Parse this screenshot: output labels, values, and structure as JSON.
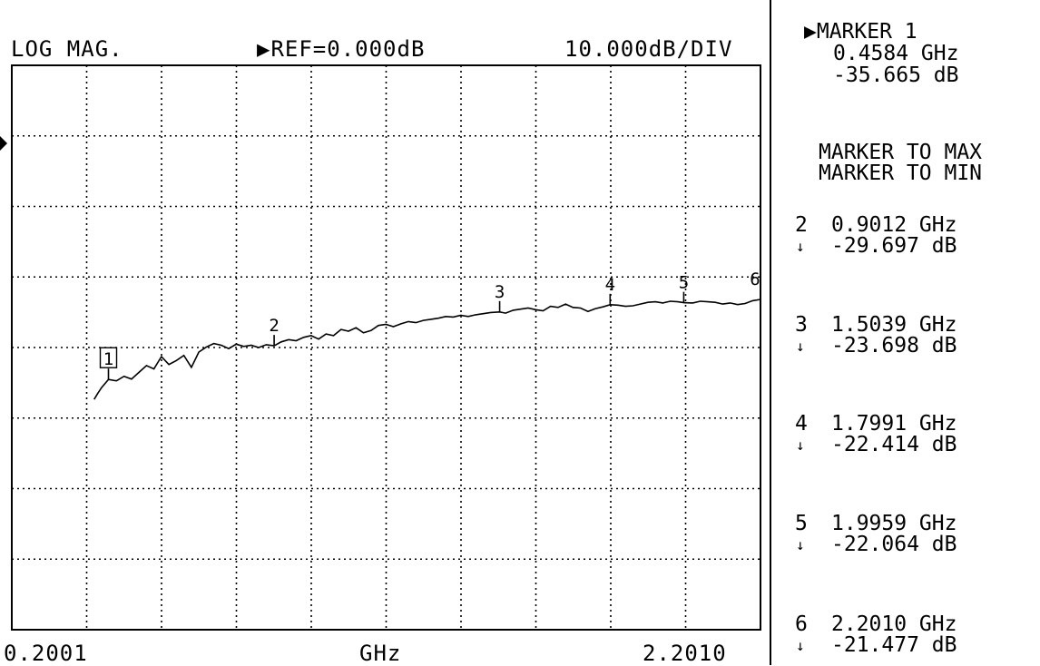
{
  "header": {
    "format": "LOG MAG.",
    "reference": "▶REF=0.000dB",
    "scale": "10.000dB/DIV"
  },
  "footer": {
    "start": "0.2001",
    "unit": "GHz",
    "stop": "2.2010"
  },
  "active_marker": {
    "title": "▶MARKER 1",
    "freq": "0.4584 GHz",
    "amp": "-35.665 dB"
  },
  "menu": {
    "to_max": "MARKER TO MAX",
    "to_min": "MARKER TO MIN"
  },
  "markers": [
    {
      "num": "2",
      "arrow": "↓",
      "freq": "0.9012 GHz",
      "amp": "-29.697 dB"
    },
    {
      "num": "3",
      "arrow": "↓",
      "freq": "1.5039 GHz",
      "amp": "-23.698 dB"
    },
    {
      "num": "4",
      "arrow": "↓",
      "freq": "1.7991 GHz",
      "amp": "-22.414 dB"
    },
    {
      "num": "5",
      "arrow": "↓",
      "freq": "1.9959 GHz",
      "amp": "-22.064 dB"
    },
    {
      "num": "6",
      "arrow": "↓",
      "freq": "2.2010 GHz",
      "amp": "-21.477 dB"
    }
  ],
  "chart_data": {
    "type": "line",
    "xlabel": "GHz",
    "ylabel": "",
    "xlim": [
      0.2001,
      2.201
    ],
    "ylim": [
      -80,
      20
    ],
    "reference_db": 0,
    "grid": true,
    "series": [
      {
        "x": [
          0.42,
          0.43,
          0.44,
          0.4584,
          0.48,
          0.5,
          0.52,
          0.54,
          0.56,
          0.58,
          0.6,
          0.62,
          0.64,
          0.66,
          0.68,
          0.7,
          0.72,
          0.74,
          0.76,
          0.78,
          0.8,
          0.82,
          0.84,
          0.86,
          0.88,
          0.9012,
          0.92,
          0.94,
          0.96,
          0.98,
          1.0,
          1.02,
          1.04,
          1.06,
          1.08,
          1.1,
          1.12,
          1.14,
          1.16,
          1.18,
          1.2,
          1.22,
          1.24,
          1.26,
          1.28,
          1.3,
          1.32,
          1.34,
          1.36,
          1.38,
          1.4,
          1.42,
          1.44,
          1.46,
          1.48,
          1.5039,
          1.52,
          1.54,
          1.56,
          1.58,
          1.6,
          1.62,
          1.64,
          1.66,
          1.68,
          1.7,
          1.72,
          1.74,
          1.76,
          1.78,
          1.7991,
          1.82,
          1.84,
          1.86,
          1.88,
          1.9,
          1.92,
          1.94,
          1.96,
          1.98,
          1.9959,
          2.02,
          2.04,
          2.06,
          2.08,
          2.1,
          2.12,
          2.14,
          2.16,
          2.18,
          2.201
        ],
        "y": [
          -39.2,
          -38.1,
          -37.1,
          -35.665,
          -35.9,
          -35.1,
          -35.6,
          -34.4,
          -33.2,
          -33.8,
          -31.6,
          -33.0,
          -32.3,
          -31.4,
          -33.5,
          -30.8,
          -29.9,
          -29.3,
          -29.6,
          -30.2,
          -29.4,
          -29.8,
          -29.6,
          -30.0,
          -29.5,
          -29.697,
          -29.0,
          -28.6,
          -28.8,
          -28.2,
          -27.9,
          -28.5,
          -27.6,
          -27.9,
          -26.8,
          -27.1,
          -26.5,
          -27.4,
          -27.0,
          -26.1,
          -25.9,
          -26.3,
          -25.8,
          -25.4,
          -25.6,
          -25.2,
          -25.0,
          -24.8,
          -24.5,
          -24.6,
          -24.3,
          -24.5,
          -24.2,
          -24.0,
          -23.8,
          -23.698,
          -23.9,
          -23.4,
          -23.2,
          -23.0,
          -23.3,
          -23.5,
          -22.7,
          -22.9,
          -22.3,
          -22.9,
          -23.0,
          -23.6,
          -23.1,
          -22.8,
          -22.414,
          -22.5,
          -22.7,
          -22.6,
          -22.3,
          -22.0,
          -21.9,
          -22.1,
          -21.8,
          -21.9,
          -22.064,
          -22.1,
          -21.8,
          -21.9,
          -22.0,
          -22.3,
          -22.1,
          -22.4,
          -22.2,
          -21.7,
          -21.477
        ]
      }
    ],
    "markers": [
      {
        "label": "1",
        "x": 0.4584,
        "y": -35.665,
        "boxed": true
      },
      {
        "label": "2",
        "x": 0.9012,
        "y": -29.697
      },
      {
        "label": "3",
        "x": 1.5039,
        "y": -23.698
      },
      {
        "label": "4",
        "x": 1.7991,
        "y": -22.414
      },
      {
        "label": "5",
        "x": 1.9959,
        "y": -22.064
      },
      {
        "label": "6",
        "x": 2.201,
        "y": -21.477
      }
    ]
  }
}
